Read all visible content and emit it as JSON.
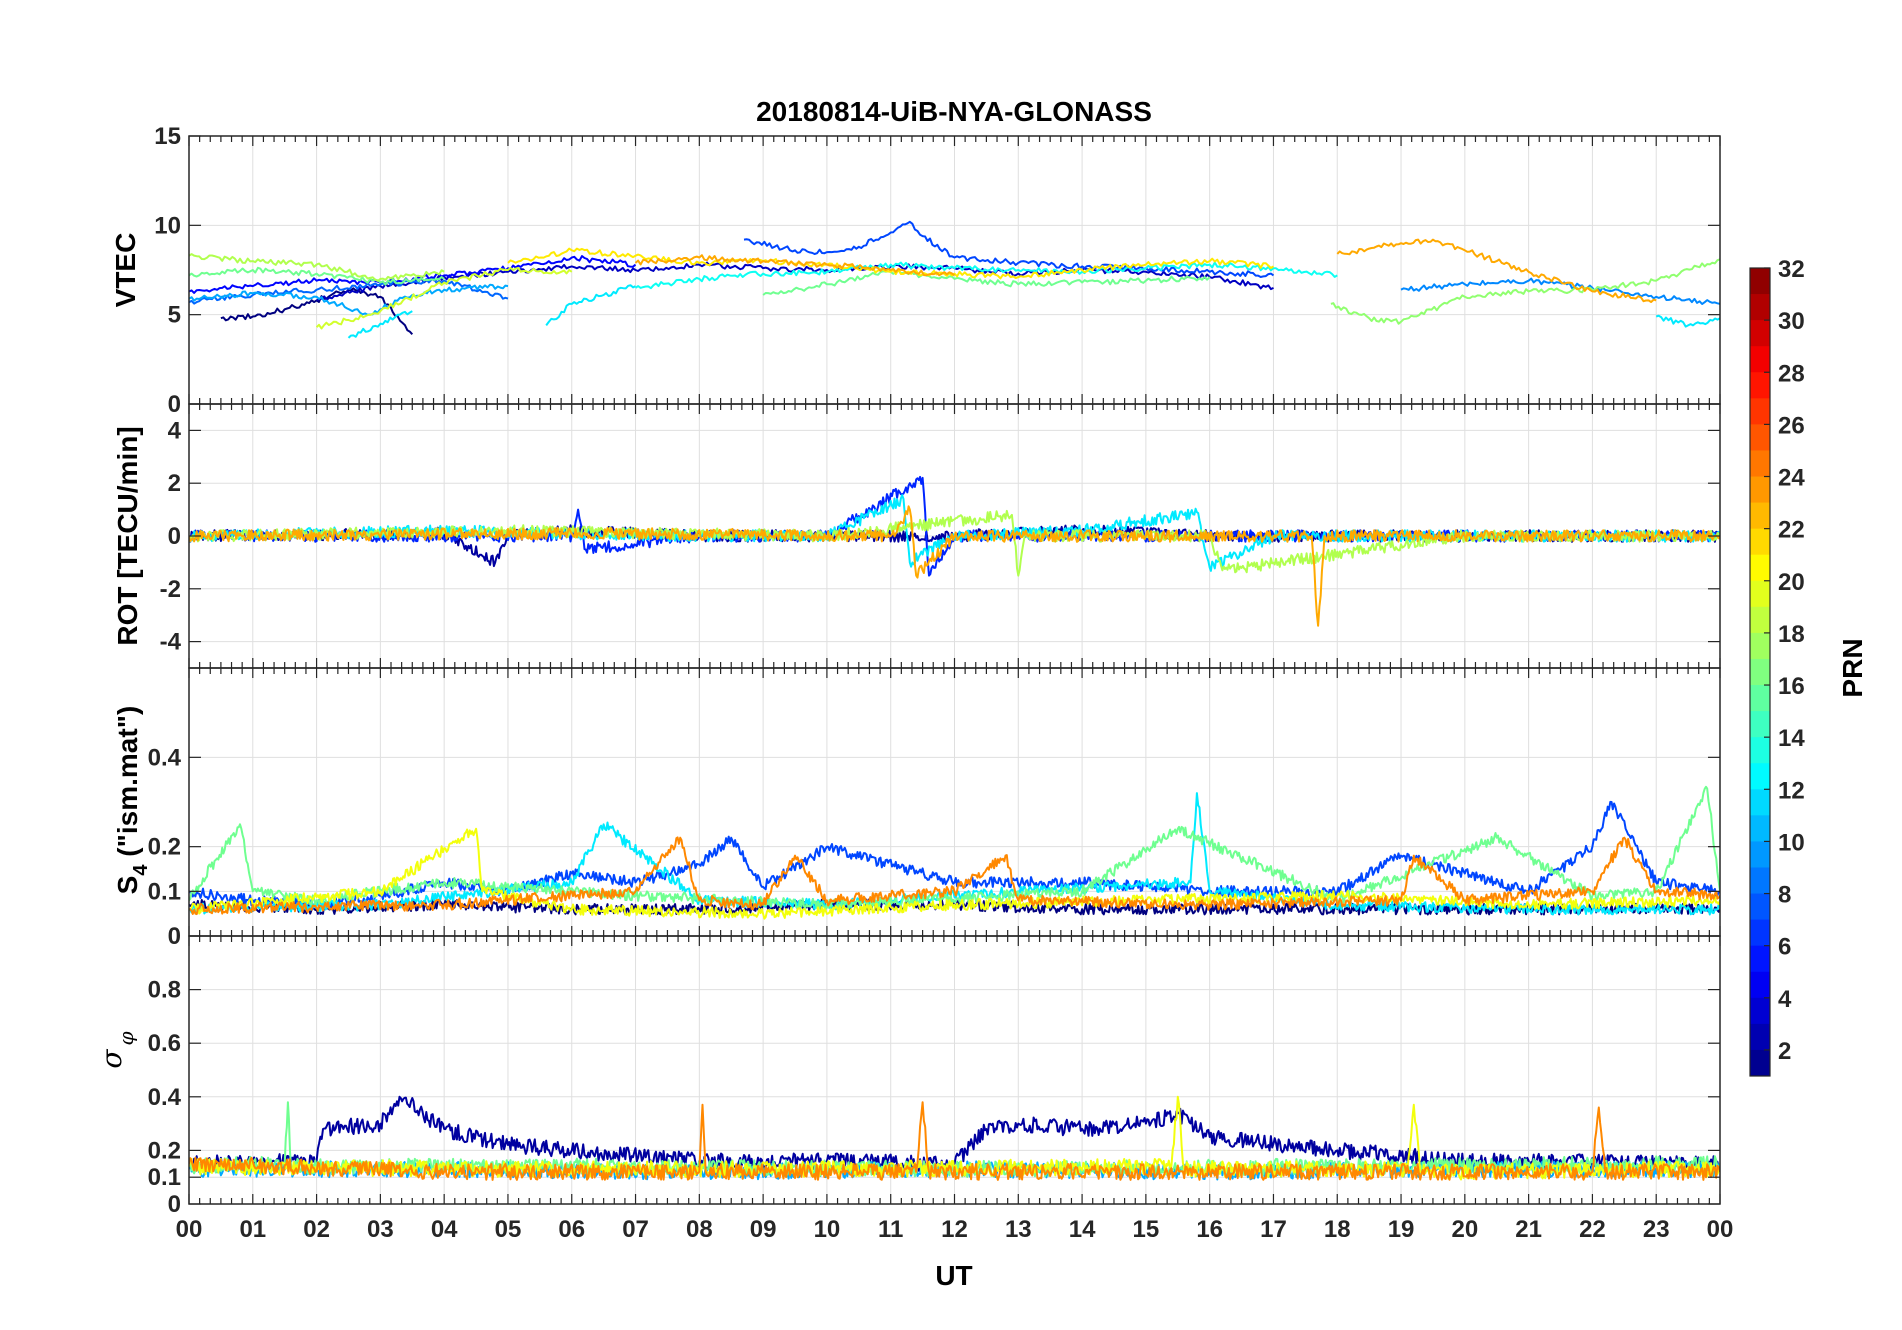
{
  "chart_data": {
    "type": "line",
    "title": "20180814-UiB-NYA-GLONASS",
    "xlabel": "UT",
    "x_tick_labels": [
      "00",
      "01",
      "02",
      "03",
      "04",
      "05",
      "06",
      "07",
      "08",
      "09",
      "10",
      "11",
      "12",
      "13",
      "14",
      "15",
      "16",
      "17",
      "18",
      "19",
      "20",
      "21",
      "22",
      "23",
      "00"
    ],
    "xlim": [
      0,
      24
    ],
    "grid": true,
    "colormap": "jet",
    "colorbar": {
      "label": "PRN",
      "range": [
        1,
        32
      ],
      "ticks": [
        "2",
        "4",
        "6",
        "8",
        "10",
        "12",
        "14",
        "16",
        "18",
        "20",
        "22",
        "24",
        "26",
        "28",
        "30",
        "32"
      ],
      "placement": "right"
    },
    "panels": [
      {
        "name": "vtec",
        "ylabel": "VTEC",
        "ylim": [
          0,
          15
        ],
        "y_ticks": [
          "0",
          "5",
          "10",
          "15"
        ],
        "series": [
          {
            "prn": 1,
            "x": [
              0.5,
              1,
              1.5,
              2,
              2.5,
              3,
              3.5
            ],
            "y": [
              4.8,
              4.9,
              5.3,
              5.8,
              6.4,
              6.0,
              3.9
            ]
          },
          {
            "prn": 3,
            "x": [
              2,
              3,
              4,
              5,
              6,
              7,
              8,
              9,
              10,
              11,
              12,
              13,
              14,
              15,
              16,
              17
            ],
            "y": [
              5.8,
              6.6,
              7.1,
              7.4,
              7.7,
              7.5,
              7.8,
              7.6,
              7.5,
              7.7,
              7.6,
              7.3,
              7.5,
              7.4,
              7.1,
              6.5
            ]
          },
          {
            "prn": 5,
            "x": [
              0,
              1,
              2,
              3,
              4,
              5,
              6,
              7
            ],
            "y": [
              6.3,
              6.6,
              6.9,
              6.8,
              7.2,
              7.6,
              8.2,
              7.8
            ]
          },
          {
            "prn": 7,
            "x": [
              8.7,
              9.5,
              10,
              10.5,
              11,
              11.3,
              11.5,
              12,
              13,
              14,
              15,
              16,
              17
            ],
            "y": [
              9.2,
              8.6,
              8.5,
              8.8,
              9.6,
              10.2,
              9.4,
              8.2,
              7.9,
              7.7,
              7.6,
              7.4,
              7.2
            ]
          },
          {
            "prn": 8,
            "x": [
              0,
              1,
              2,
              3,
              4,
              5
            ],
            "y": [
              5.7,
              6.1,
              6.4,
              6.7,
              6.9,
              5.9
            ]
          },
          {
            "prn": 9,
            "x": [
              19,
              20,
              21,
              22,
              23,
              24
            ],
            "y": [
              6.4,
              6.7,
              6.9,
              6.5,
              6.0,
              5.6
            ]
          },
          {
            "prn": 10,
            "x": [
              0,
              1,
              2,
              2.8,
              3.5,
              4,
              5
            ],
            "y": [
              5.9,
              6.2,
              6.0,
              5.0,
              6.1,
              6.4,
              6.6
            ]
          },
          {
            "prn": 12,
            "x": [
              2.5,
              3,
              3.5
            ],
            "y": [
              3.7,
              4.5,
              5.2
            ]
          },
          {
            "prn": 12,
            "x": [
              5.6,
              6,
              6.5,
              7
            ],
            "y": [
              4.4,
              5.6,
              6.1,
              6.6
            ]
          },
          {
            "prn": 13,
            "x": [
              7,
              8,
              9,
              10,
              11,
              12,
              13,
              14,
              15,
              16,
              17,
              18
            ],
            "y": [
              6.5,
              7.0,
              7.3,
              7.4,
              7.8,
              7.6,
              7.5,
              7.4,
              7.6,
              7.8,
              7.6,
              7.2
            ]
          },
          {
            "prn": 12,
            "x": [
              23,
              23.5,
              24
            ],
            "y": [
              4.9,
              4.4,
              4.8
            ]
          },
          {
            "prn": 16,
            "x": [
              0,
              1,
              2,
              3,
              4
            ],
            "y": [
              7.2,
              7.5,
              7.3,
              6.8,
              7.0
            ]
          },
          {
            "prn": 16,
            "x": [
              9,
              10,
              11,
              12,
              13,
              14,
              15,
              16
            ],
            "y": [
              6.1,
              6.7,
              7.4,
              7.0,
              6.7,
              6.8,
              6.9,
              7.1
            ]
          },
          {
            "prn": 17,
            "x": [
              17.9,
              18.5,
              19,
              20,
              21,
              22,
              23,
              24
            ],
            "y": [
              5.6,
              4.8,
              4.6,
              6.0,
              6.3,
              6.4,
              6.9,
              8.1
            ]
          },
          {
            "prn": 18,
            "x": [
              0,
              1,
              2,
              3,
              4
            ],
            "y": [
              8.3,
              8.0,
              7.8,
              7.0,
              7.4
            ]
          },
          {
            "prn": 19,
            "x": [
              2,
              2.5,
              3,
              4,
              5,
              6
            ],
            "y": [
              4.3,
              4.7,
              5.2,
              6.8,
              7.5,
              7.4
            ]
          },
          {
            "prn": 21,
            "x": [
              5,
              6,
              7,
              8,
              9,
              10,
              11,
              12,
              13,
              14,
              15,
              16,
              17
            ],
            "y": [
              7.9,
              8.6,
              8.3,
              7.9,
              8.0,
              7.8,
              7.4,
              7.3,
              7.1,
              7.5,
              7.8,
              8.0,
              7.7
            ]
          },
          {
            "prn": 23,
            "x": [
              7,
              8,
              9,
              10,
              11,
              12
            ],
            "y": [
              7.9,
              8.2,
              8.0,
              7.8,
              7.5,
              7.2
            ]
          },
          {
            "prn": 23,
            "x": [
              18,
              18.5,
              19,
              19.5,
              20,
              20.5,
              21,
              22,
              23
            ],
            "y": [
              8.4,
              8.7,
              9.0,
              9.2,
              8.6,
              8.0,
              7.4,
              6.3,
              5.8
            ]
          }
        ]
      },
      {
        "name": "rot",
        "ylabel": "ROT [TECU/min]",
        "ylim": [
          -5,
          5
        ],
        "y_ticks": [
          "-4",
          "-2",
          "0",
          "2",
          "4"
        ],
        "series": [
          {
            "prn": 2,
            "x": [
              0,
              4,
              4.8,
              5,
              6,
              8,
              10,
              12,
              14,
              16,
              18,
              20,
              22,
              24
            ],
            "y": [
              0,
              0.1,
              -1.0,
              0,
              0.2,
              0,
              0,
              0,
              0.2,
              0,
              0,
              0,
              0,
              0
            ]
          },
          {
            "prn": 6,
            "x": [
              0,
              6,
              6.1,
              6.2,
              8,
              10,
              11.5,
              11.6,
              12,
              16,
              24
            ],
            "y": [
              0,
              0,
              1.0,
              -0.5,
              0,
              0,
              2.2,
              -1.5,
              0,
              0,
              0
            ]
          },
          {
            "prn": 12,
            "x": [
              0,
              4,
              8,
              10,
              11.2,
              11.3,
              12,
              14,
              15.8,
              16,
              17,
              20,
              24
            ],
            "y": [
              0,
              0.2,
              0,
              0,
              1.4,
              -1.0,
              0,
              0.2,
              0.9,
              -1.2,
              0,
              0,
              0
            ]
          },
          {
            "prn": 18,
            "x": [
              0,
              5,
              10,
              12.9,
              13,
              13.1,
              16,
              16.2,
              20,
              24
            ],
            "y": [
              0,
              0.2,
              0,
              0.8,
              -1.5,
              0,
              0,
              -1.3,
              0,
              0
            ]
          },
          {
            "prn": 23,
            "x": [
              0,
              6,
              11,
              11.3,
              11.4,
              12,
              17.6,
              17.7,
              17.8,
              20,
              24
            ],
            "y": [
              0,
              0.1,
              0,
              1.0,
              -1.5,
              0,
              0,
              -3.4,
              0,
              0,
              0
            ]
          }
        ]
      },
      {
        "name": "s4",
        "ylabel": "S4 (\"ism.mat\")",
        "ylabel_main": "S",
        "ylabel_sub": "4",
        "ylabel_rest": " (\"ism.mat\")",
        "ylim": [
          0,
          0.6
        ],
        "y_ticks": [
          "0",
          "0.1",
          "0.2",
          "0.4"
        ],
        "series": [
          {
            "prn": 1,
            "x": [
              0,
              2,
              4,
              6,
              8,
              10,
              12,
              14,
              16,
              18,
              20,
              22,
              24
            ],
            "y": [
              0.07,
              0.06,
              0.07,
              0.06,
              0.06,
              0.07,
              0.07,
              0.06,
              0.06,
              0.06,
              0.06,
              0.06,
              0.06
            ]
          },
          {
            "prn": 7,
            "x": [
              0,
              1,
              2,
              3,
              4,
              5,
              6,
              7,
              8,
              8.5,
              9,
              10,
              12,
              14,
              16,
              18,
              19,
              20,
              21,
              22,
              22.3,
              23,
              24
            ],
            "y": [
              0.1,
              0.08,
              0.07,
              0.09,
              0.12,
              0.1,
              0.14,
              0.12,
              0.16,
              0.22,
              0.11,
              0.2,
              0.12,
              0.12,
              0.1,
              0.1,
              0.18,
              0.14,
              0.1,
              0.2,
              0.3,
              0.12,
              0.1
            ]
          },
          {
            "prn": 12,
            "x": [
              0,
              3,
              6,
              6.5,
              8,
              10,
              13,
              15.7,
              15.8,
              16,
              18,
              21,
              24
            ],
            "y": [
              0.06,
              0.07,
              0.12,
              0.25,
              0.08,
              0.07,
              0.1,
              0.12,
              0.32,
              0.1,
              0.07,
              0.06,
              0.06
            ]
          },
          {
            "prn": 16,
            "x": [
              0,
              0.8,
              1,
              2,
              4,
              7,
              10,
              14,
              15.5,
              18,
              20.5,
              22,
              23,
              23.8,
              24
            ],
            "y": [
              0.08,
              0.25,
              0.1,
              0.08,
              0.12,
              0.09,
              0.07,
              0.1,
              0.24,
              0.08,
              0.22,
              0.09,
              0.1,
              0.33,
              0.1
            ]
          },
          {
            "prn": 20,
            "x": [
              0,
              3,
              4.5,
              4.6,
              6,
              9,
              12,
              15,
              18,
              21,
              24
            ],
            "y": [
              0.06,
              0.1,
              0.24,
              0.1,
              0.06,
              0.05,
              0.07,
              0.08,
              0.09,
              0.07,
              0.08
            ]
          },
          {
            "prn": 24,
            "x": [
              0,
              4,
              7,
              7.7,
              8,
              9,
              9.5,
              10,
              12,
              12.8,
              13,
              16,
              19,
              19.2,
              20,
              22,
              22.5,
              23,
              24
            ],
            "y": [
              0.06,
              0.07,
              0.1,
              0.22,
              0.08,
              0.07,
              0.18,
              0.08,
              0.1,
              0.18,
              0.08,
              0.07,
              0.08,
              0.18,
              0.08,
              0.1,
              0.22,
              0.1,
              0.09
            ]
          }
        ]
      },
      {
        "name": "sigma_phi",
        "ylabel": "σφ",
        "ylabel_main": "σ",
        "ylabel_sub": "φ",
        "ylim": [
          0,
          1
        ],
        "y_ticks": [
          "0",
          "0.1",
          "0.2",
          "0.4",
          "0.6",
          "0.8"
        ],
        "series": [
          {
            "prn": 2,
            "x": [
              0,
              2,
              2.1,
              3,
              3.3,
              4,
              5,
              6,
              8,
              10,
              12,
              12.5,
              13,
              14,
              15,
              15.5,
              16,
              18,
              19,
              20,
              24
            ],
            "y": [
              0.15,
              0.16,
              0.28,
              0.3,
              0.4,
              0.28,
              0.22,
              0.2,
              0.16,
              0.16,
              0.15,
              0.28,
              0.3,
              0.28,
              0.3,
              0.34,
              0.25,
              0.2,
              0.18,
              0.16,
              0.15
            ]
          },
          {
            "prn": 10,
            "x": [
              0,
              4,
              8,
              12,
              16,
              20,
              24
            ],
            "y": [
              0.13,
              0.13,
              0.12,
              0.13,
              0.12,
              0.13,
              0.13
            ]
          },
          {
            "prn": 16,
            "x": [
              0,
              1.5,
              1.55,
              1.6,
              6,
              12,
              18,
              24
            ],
            "y": [
              0.14,
              0.15,
              0.38,
              0.14,
              0.14,
              0.13,
              0.14,
              0.15
            ]
          },
          {
            "prn": 20,
            "x": [
              0,
              5,
              10,
              15.4,
              15.5,
              15.6,
              19.1,
              19.2,
              19.3,
              24
            ],
            "y": [
              0.14,
              0.13,
              0.13,
              0.14,
              0.4,
              0.13,
              0.13,
              0.37,
              0.12,
              0.13
            ]
          },
          {
            "prn": 24,
            "x": [
              0,
              4,
              8,
              8.05,
              8.1,
              11.4,
              11.5,
              11.6,
              16,
              22,
              22.1,
              22.2,
              24
            ],
            "y": [
              0.15,
              0.12,
              0.12,
              0.37,
              0.12,
              0.12,
              0.38,
              0.12,
              0.12,
              0.12,
              0.36,
              0.12,
              0.12
            ]
          }
        ]
      }
    ]
  }
}
